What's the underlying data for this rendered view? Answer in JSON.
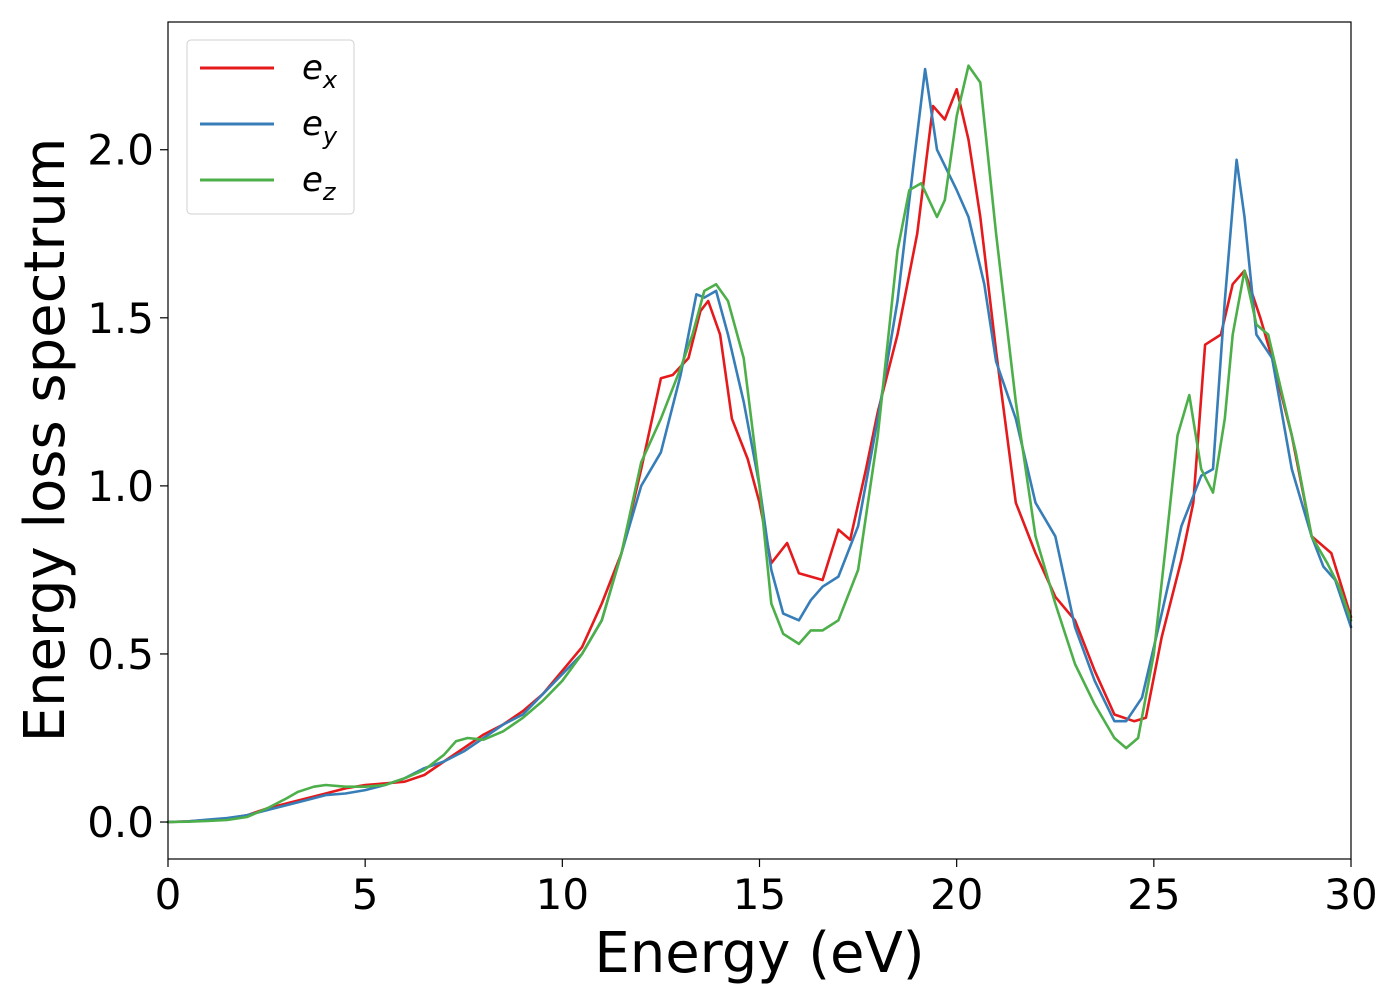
{
  "chart_data": {
    "type": "line",
    "xlabel": "Energy (eV)",
    "ylabel": "Energy loss spectrum",
    "xlim": [
      0,
      30
    ],
    "ylim": [
      -0.11,
      2.38
    ],
    "xticks": [
      0,
      5,
      10,
      15,
      20,
      25,
      30
    ],
    "yticks": [
      0.0,
      0.5,
      1.0,
      1.5,
      2.0
    ],
    "xtick_labels": [
      "0",
      "5",
      "10",
      "15",
      "20",
      "25",
      "30"
    ],
    "ytick_labels": [
      "0.0",
      "0.5",
      "1.0",
      "1.5",
      "2.0"
    ],
    "grid": false,
    "legend_position": "top-left",
    "series": [
      {
        "name": "e_x",
        "label_base": "e",
        "label_sub": "x",
        "color": "#e41a1c",
        "points": [
          [
            0,
            0.0
          ],
          [
            0.5,
            0.002
          ],
          [
            1,
            0.006
          ],
          [
            1.5,
            0.01
          ],
          [
            2,
            0.02
          ],
          [
            2.5,
            0.04
          ],
          [
            3,
            0.055
          ],
          [
            3.5,
            0.07
          ],
          [
            4,
            0.085
          ],
          [
            4.5,
            0.1
          ],
          [
            5,
            0.11
          ],
          [
            5.5,
            0.115
          ],
          [
            6,
            0.12
          ],
          [
            6.5,
            0.14
          ],
          [
            7,
            0.18
          ],
          [
            7.5,
            0.22
          ],
          [
            8,
            0.26
          ],
          [
            8.5,
            0.29
          ],
          [
            9,
            0.33
          ],
          [
            9.5,
            0.38
          ],
          [
            10,
            0.45
          ],
          [
            10.5,
            0.52
          ],
          [
            11,
            0.65
          ],
          [
            11.5,
            0.8
          ],
          [
            12,
            1.05
          ],
          [
            12.5,
            1.32
          ],
          [
            12.8,
            1.33
          ],
          [
            13.2,
            1.38
          ],
          [
            13.5,
            1.52
          ],
          [
            13.7,
            1.55
          ],
          [
            14,
            1.45
          ],
          [
            14.3,
            1.2
          ],
          [
            14.7,
            1.08
          ],
          [
            15,
            0.95
          ],
          [
            15.3,
            0.77
          ],
          [
            15.7,
            0.83
          ],
          [
            16,
            0.74
          ],
          [
            16.3,
            0.73
          ],
          [
            16.6,
            0.72
          ],
          [
            17,
            0.87
          ],
          [
            17.3,
            0.84
          ],
          [
            17.7,
            1.05
          ],
          [
            18,
            1.22
          ],
          [
            18.5,
            1.45
          ],
          [
            19,
            1.75
          ],
          [
            19.4,
            2.13
          ],
          [
            19.7,
            2.09
          ],
          [
            20,
            2.18
          ],
          [
            20.3,
            2.03
          ],
          [
            20.6,
            1.8
          ],
          [
            21,
            1.4
          ],
          [
            21.5,
            0.95
          ],
          [
            22,
            0.8
          ],
          [
            22.5,
            0.67
          ],
          [
            23,
            0.6
          ],
          [
            23.5,
            0.45
          ],
          [
            24,
            0.32
          ],
          [
            24.5,
            0.3
          ],
          [
            24.8,
            0.31
          ],
          [
            25.2,
            0.55
          ],
          [
            25.7,
            0.78
          ],
          [
            26,
            0.95
          ],
          [
            26.3,
            1.42
          ],
          [
            26.7,
            1.45
          ],
          [
            27,
            1.6
          ],
          [
            27.3,
            1.64
          ],
          [
            27.7,
            1.5
          ],
          [
            28,
            1.38
          ],
          [
            28.5,
            1.15
          ],
          [
            29,
            0.85
          ],
          [
            29.3,
            0.82
          ],
          [
            29.5,
            0.8
          ],
          [
            30,
            0.61
          ]
        ]
      },
      {
        "name": "e_y",
        "label_base": "e",
        "label_sub": "y",
        "color": "#377eb8",
        "points": [
          [
            0,
            0.0
          ],
          [
            0.5,
            0.002
          ],
          [
            1,
            0.007
          ],
          [
            1.5,
            0.012
          ],
          [
            2,
            0.02
          ],
          [
            2.5,
            0.035
          ],
          [
            3,
            0.05
          ],
          [
            3.5,
            0.065
          ],
          [
            4,
            0.08
          ],
          [
            4.5,
            0.085
          ],
          [
            5,
            0.095
          ],
          [
            5.5,
            0.11
          ],
          [
            6,
            0.13
          ],
          [
            6.5,
            0.16
          ],
          [
            7,
            0.18
          ],
          [
            7.5,
            0.21
          ],
          [
            8,
            0.25
          ],
          [
            8.5,
            0.29
          ],
          [
            9,
            0.32
          ],
          [
            9.5,
            0.38
          ],
          [
            10,
            0.44
          ],
          [
            10.5,
            0.5
          ],
          [
            11,
            0.6
          ],
          [
            11.5,
            0.8
          ],
          [
            12,
            1.0
          ],
          [
            12.5,
            1.1
          ],
          [
            13,
            1.33
          ],
          [
            13.4,
            1.57
          ],
          [
            13.6,
            1.56
          ],
          [
            13.9,
            1.58
          ],
          [
            14.2,
            1.45
          ],
          [
            14.6,
            1.25
          ],
          [
            15,
            1.0
          ],
          [
            15.3,
            0.75
          ],
          [
            15.6,
            0.62
          ],
          [
            16,
            0.6
          ],
          [
            16.3,
            0.66
          ],
          [
            16.6,
            0.7
          ],
          [
            17,
            0.73
          ],
          [
            17.5,
            0.88
          ],
          [
            18,
            1.2
          ],
          [
            18.5,
            1.55
          ],
          [
            18.9,
            1.95
          ],
          [
            19.2,
            2.24
          ],
          [
            19.5,
            2.0
          ],
          [
            20,
            1.88
          ],
          [
            20.3,
            1.8
          ],
          [
            20.7,
            1.6
          ],
          [
            21,
            1.37
          ],
          [
            21.5,
            1.2
          ],
          [
            22,
            0.95
          ],
          [
            22.5,
            0.85
          ],
          [
            23,
            0.58
          ],
          [
            23.5,
            0.42
          ],
          [
            24,
            0.3
          ],
          [
            24.3,
            0.3
          ],
          [
            24.7,
            0.37
          ],
          [
            25.2,
            0.62
          ],
          [
            25.7,
            0.88
          ],
          [
            26.2,
            1.03
          ],
          [
            26.5,
            1.05
          ],
          [
            26.8,
            1.55
          ],
          [
            27.1,
            1.97
          ],
          [
            27.3,
            1.8
          ],
          [
            27.6,
            1.45
          ],
          [
            28,
            1.38
          ],
          [
            28.5,
            1.05
          ],
          [
            29,
            0.85
          ],
          [
            29.3,
            0.76
          ],
          [
            29.6,
            0.72
          ],
          [
            30,
            0.58
          ]
        ]
      },
      {
        "name": "e_z",
        "label_base": "e",
        "label_sub": "z",
        "color": "#4daf4a",
        "points": [
          [
            0,
            0.0
          ],
          [
            0.5,
            0.001
          ],
          [
            1,
            0.003
          ],
          [
            1.5,
            0.006
          ],
          [
            2,
            0.015
          ],
          [
            2.5,
            0.04
          ],
          [
            3,
            0.07
          ],
          [
            3.3,
            0.09
          ],
          [
            3.7,
            0.105
          ],
          [
            4,
            0.11
          ],
          [
            4.5,
            0.105
          ],
          [
            5,
            0.105
          ],
          [
            5.5,
            0.11
          ],
          [
            6,
            0.13
          ],
          [
            6.5,
            0.155
          ],
          [
            7,
            0.2
          ],
          [
            7.3,
            0.24
          ],
          [
            7.6,
            0.25
          ],
          [
            8,
            0.245
          ],
          [
            8.5,
            0.27
          ],
          [
            9,
            0.31
          ],
          [
            9.5,
            0.36
          ],
          [
            10,
            0.42
          ],
          [
            10.5,
            0.5
          ],
          [
            11,
            0.6
          ],
          [
            11.5,
            0.8
          ],
          [
            12,
            1.07
          ],
          [
            12.5,
            1.2
          ],
          [
            13,
            1.35
          ],
          [
            13.3,
            1.45
          ],
          [
            13.6,
            1.58
          ],
          [
            13.9,
            1.6
          ],
          [
            14.2,
            1.55
          ],
          [
            14.6,
            1.38
          ],
          [
            15,
            1.0
          ],
          [
            15.3,
            0.65
          ],
          [
            15.6,
            0.56
          ],
          [
            16,
            0.53
          ],
          [
            16.3,
            0.57
          ],
          [
            16.6,
            0.57
          ],
          [
            17,
            0.6
          ],
          [
            17.5,
            0.75
          ],
          [
            18,
            1.15
          ],
          [
            18.5,
            1.7
          ],
          [
            18.8,
            1.88
          ],
          [
            19.1,
            1.9
          ],
          [
            19.5,
            1.8
          ],
          [
            19.7,
            1.85
          ],
          [
            20,
            2.1
          ],
          [
            20.3,
            2.25
          ],
          [
            20.6,
            2.2
          ],
          [
            21,
            1.75
          ],
          [
            21.5,
            1.25
          ],
          [
            22,
            0.85
          ],
          [
            22.5,
            0.65
          ],
          [
            23,
            0.47
          ],
          [
            23.5,
            0.35
          ],
          [
            24,
            0.25
          ],
          [
            24.3,
            0.22
          ],
          [
            24.6,
            0.25
          ],
          [
            25,
            0.5
          ],
          [
            25.3,
            0.82
          ],
          [
            25.6,
            1.15
          ],
          [
            25.9,
            1.27
          ],
          [
            26.2,
            1.05
          ],
          [
            26.5,
            0.98
          ],
          [
            26.8,
            1.2
          ],
          [
            27,
            1.45
          ],
          [
            27.3,
            1.64
          ],
          [
            27.6,
            1.48
          ],
          [
            27.9,
            1.45
          ],
          [
            28.2,
            1.3
          ],
          [
            28.6,
            1.1
          ],
          [
            29,
            0.85
          ],
          [
            29.4,
            0.77
          ],
          [
            29.7,
            0.7
          ],
          [
            30,
            0.6
          ]
        ]
      }
    ]
  }
}
